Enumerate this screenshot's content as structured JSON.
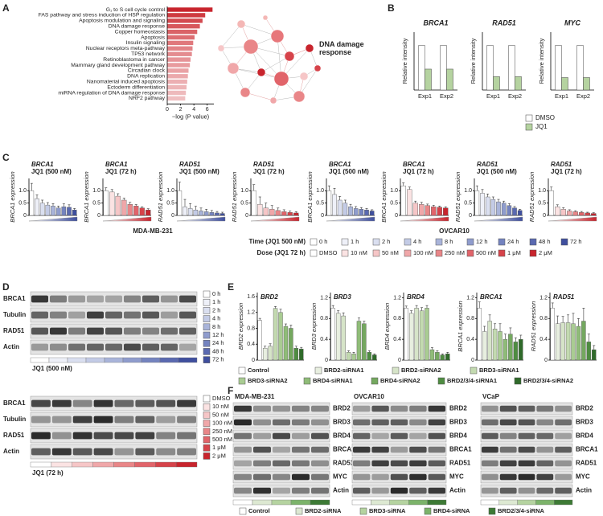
{
  "panel_labels": [
    "A",
    "B",
    "C",
    "D",
    "E",
    "F"
  ],
  "network": {
    "label": "DNA damage response"
  },
  "chart_data": [
    {
      "type": "bar",
      "orientation": "horizontal",
      "categories": [
        "G₁ to S cell cycle control",
        "FAS pathway and stress induction of HSP regulation",
        "Apoptosis modulation and signaling",
        "DNA damage response",
        "Copper homeostasis",
        "Apoptosis",
        "Insulin signaling",
        "Nuclear receptors meta-pathway",
        "TP53 network",
        "Retinoblastoma in cancer",
        "Mammary gland development pathway",
        "Circadian clock",
        "DNA replication",
        "Nanomaterial induced apoptosis",
        "Ectoderm differentiation",
        "miRNA regulation of DNA damage response",
        "NRF2 pathway"
      ],
      "values": [
        6.8,
        5.7,
        5.3,
        4.9,
        4.5,
        4.1,
        3.9,
        3.8,
        3.7,
        3.5,
        3.4,
        3.2,
        3.1,
        3.0,
        2.9,
        2.8,
        2.7
      ],
      "colors": [
        "#c8242d",
        "#cf3a41",
        "#d34a50",
        "#d7575c",
        "#da6367",
        "#dd6e72",
        "#e0787c",
        "#e28286",
        "#e48b8f",
        "#e69397",
        "#e89b9e",
        "#e9a2a5",
        "#eba9ac",
        "#ecafb2",
        "#edb5b7",
        "#eebabc",
        "#efbfc1"
      ],
      "tick_label_colors": [
        "#222222",
        "#222222",
        "#222222",
        "#d62728",
        "#222222",
        "#222222",
        "#222222",
        "#222222",
        "#222222",
        "#222222",
        "#222222",
        "#222222",
        "#222222",
        "#222222",
        "#222222",
        "#222222",
        "#222222"
      ],
      "xlim": [
        0,
        7
      ],
      "xticks": [
        0,
        2,
        4,
        6
      ],
      "xlabel": "−log (P value)"
    },
    {
      "type": "bar",
      "ylabel": "Relative intensity",
      "categories": [
        "Exp1",
        "Exp2"
      ],
      "ylim": [
        0,
        1.3
      ],
      "series": [
        {
          "name": "DMSO",
          "color": "#ffffff"
        },
        {
          "name": "JQ1",
          "color": "#b5d3a0"
        }
      ],
      "panels": [
        {
          "title": "BRCA1",
          "values": [
            [
              1,
              1
            ],
            [
              0.47,
              0.47
            ]
          ]
        },
        {
          "title": "RAD51",
          "values": [
            [
              1,
              1
            ],
            [
              0.3,
              0.3
            ]
          ]
        },
        {
          "title": "MYC",
          "values": [
            [
              1,
              1
            ],
            [
              0.28,
              0.28
            ]
          ]
        }
      ]
    },
    {
      "type": "bar",
      "ylim": [
        0,
        1.5
      ],
      "yticks": [
        0,
        0.5,
        {
          "value": 1,
          "label": "1.0"
        }
      ],
      "groups": [
        {
          "label": "MDA-MB-231",
          "panels": [
            {
              "title": "BRCA1",
              "subtitle": "JQ1 (500 nM)",
              "ylabel": "BRCA1 expression",
              "values": [
                1,
                0.68,
                0.5,
                0.42,
                0.38,
                0.3,
                0.35,
                0.33,
                0.22
              ],
              "errors": [
                0.3,
                0.15,
                0.12,
                0.1,
                0.1,
                0.08,
                0.12,
                0.1,
                0.06
              ],
              "colors": [
                "#ffffff",
                "#eef0f8",
                "#dadff0",
                "#c3cbe6",
                "#a9b4da",
                "#8f9ccd",
                "#7483bf",
                "#5a69b0",
                "#3f4f9e"
              ]
            },
            {
              "title": "BRCA1",
              "subtitle": "JQ1 (72 h)",
              "ylabel": "BRCA1 expression",
              "values": [
                1,
                0.95,
                0.78,
                0.62,
                0.45,
                0.38,
                0.3,
                0.22
              ],
              "errors": [
                0.12,
                0.1,
                0.1,
                0.08,
                0.08,
                0.06,
                0.05,
                0.05
              ],
              "colors": [
                "#ffffff",
                "#fbe3e3",
                "#f6c6c7",
                "#f0a7a9",
                "#e98688",
                "#e1646a",
                "#d6434a",
                "#c8242d"
              ]
            },
            {
              "title": "RAD51",
              "subtitle": "JQ1 (500 nM)",
              "ylabel": "RAD51 expression",
              "values": [
                1,
                0.35,
                0.28,
                0.22,
                0.18,
                0.15,
                0.12,
                0.1,
                0.08
              ],
              "errors": [
                0.35,
                0.3,
                0.2,
                0.15,
                0.12,
                0.1,
                0.08,
                0.06,
                0.05
              ],
              "colors": [
                "#ffffff",
                "#eef0f8",
                "#dadff0",
                "#c3cbe6",
                "#a9b4da",
                "#8f9ccd",
                "#7483bf",
                "#5a69b0",
                "#3f4f9e"
              ]
            },
            {
              "title": "RAD51",
              "subtitle": "JQ1 (72 h)",
              "ylabel": "RAD51 expression",
              "values": [
                1,
                0.45,
                0.3,
                0.25,
                0.2,
                0.15,
                0.12,
                0.1
              ],
              "errors": [
                0.25,
                0.3,
                0.2,
                0.15,
                0.1,
                0.08,
                0.06,
                0.05
              ],
              "colors": [
                "#ffffff",
                "#fbe3e3",
                "#f6c6c7",
                "#f0a7a9",
                "#e98688",
                "#e1646a",
                "#d6434a",
                "#c8242d"
              ]
            }
          ]
        },
        {
          "label": "OVCAR10",
          "panels": [
            {
              "title": "BRCA1",
              "subtitle": "JQ1 (500 nM)",
              "ylabel": "BRCA1 expression",
              "values": [
                1,
                0.85,
                0.62,
                0.5,
                0.35,
                0.28,
                0.25,
                0.22,
                0.18
              ],
              "errors": [
                0.2,
                0.25,
                0.15,
                0.12,
                0.1,
                0.08,
                0.07,
                0.06,
                0.05
              ],
              "colors": [
                "#ffffff",
                "#eef0f8",
                "#dadff0",
                "#c3cbe6",
                "#a9b4da",
                "#8f9ccd",
                "#7483bf",
                "#5a69b0",
                "#3f4f9e"
              ]
            },
            {
              "title": "BRCA1",
              "subtitle": "JQ1 (72 h)",
              "ylabel": "BRCA1 expression",
              "values": [
                1.2,
                1.05,
                0.5,
                0.45,
                0.4,
                0.35,
                0.33,
                0.3
              ],
              "errors": [
                0.12,
                0.1,
                0.08,
                0.08,
                0.06,
                0.06,
                0.05,
                0.05
              ],
              "colors": [
                "#ffffff",
                "#fbe3e3",
                "#f6c6c7",
                "#f0a7a9",
                "#e98688",
                "#e1646a",
                "#d6434a",
                "#c8242d"
              ]
            },
            {
              "title": "RAD51",
              "subtitle": "JQ1 (500 nM)",
              "ylabel": "RAD51 expression",
              "values": [
                1,
                0.9,
                0.75,
                0.65,
                0.55,
                0.5,
                0.4,
                0.3,
                0.2
              ],
              "errors": [
                0.2,
                0.15,
                0.12,
                0.1,
                0.1,
                0.08,
                0.08,
                0.06,
                0.05
              ],
              "colors": [
                "#ffffff",
                "#eef0f8",
                "#dadff0",
                "#c3cbe6",
                "#a9b4da",
                "#8f9ccd",
                "#7483bf",
                "#5a69b0",
                "#3f4f9e"
              ]
            },
            {
              "title": "RAD51",
              "subtitle": "JQ1 (72 h)",
              "ylabel": "RAD51 expression",
              "values": [
                1,
                0.35,
                0.25,
                0.18,
                0.15,
                0.12,
                0.1,
                0.08
              ],
              "errors": [
                0.15,
                0.08,
                0.06,
                0.05,
                0.04,
                0.04,
                0.03,
                0.03
              ],
              "colors": [
                "#ffffff",
                "#fbe3e3",
                "#f6c6c7",
                "#f0a7a9",
                "#e98688",
                "#e1646a",
                "#d6434a",
                "#c8242d"
              ]
            }
          ]
        }
      ],
      "legends": [
        {
          "title": "Time (JQ1 500 nM)",
          "labels": [
            "0 h",
            "1 h",
            "2 h",
            "4 h",
            "8 h",
            "12 h",
            "24 h",
            "48 h",
            "72 h"
          ],
          "colors": [
            "#ffffff",
            "#eef0f8",
            "#dadff0",
            "#c3cbe6",
            "#a9b4da",
            "#8f9ccd",
            "#7483bf",
            "#5a69b0",
            "#3f4f9e"
          ]
        },
        {
          "title": "Dose (JQ1 72 h)",
          "labels": [
            "DMSO",
            "10 nM",
            "50 nM",
            "100 nM",
            "250 nM",
            "500 nM",
            "1 μM",
            "2 μM"
          ],
          "colors": [
            "#ffffff",
            "#fbe3e3",
            "#f6c6c7",
            "#f0a7a9",
            "#e98688",
            "#e1646a",
            "#d6434a",
            "#c8242d"
          ]
        }
      ]
    },
    {
      "type": "bar",
      "colors": [
        "#ffffff",
        "#e8efe0",
        "#d6e4c8",
        "#c3dab0",
        "#a9cc92",
        "#8fbc78",
        "#74a85f",
        "#4e8c41",
        "#2f6a2a"
      ],
      "legend": [
        "Control",
        "BRD2-siRNA1",
        "BRD2-siRNA2",
        "BRD3-siRNA1",
        "BRD3-siRNA2",
        "BRD4-siRNA1",
        "BRD4-siRNA2",
        "BRD2/3/4-siRNA1",
        "BRD2/3/4-siRNA2"
      ],
      "panels": [
        {
          "title": "BRD2",
          "ylabel": "BRD2 expression",
          "ylim": [
            0,
            1.7
          ],
          "yticks": [
            0,
            0.4,
            0.8,
            1.2,
            1.6
          ],
          "values": [
            1,
            0.3,
            0.35,
            1.3,
            1.2,
            0.85,
            0.8,
            0.3,
            0.28
          ],
          "errors": [
            0.05,
            0.05,
            0.06,
            0.05,
            0.08,
            0.06,
            0.08,
            0.05,
            0.04
          ]
        },
        {
          "title": "BRD3",
          "ylabel": "BRD3 expression",
          "ylim": [
            0,
            1.3
          ],
          "yticks": [
            0,
            0.4,
            0.8,
            1.2
          ],
          "values": [
            1,
            0.9,
            0.85,
            0.15,
            0.12,
            0.75,
            0.7,
            0.15,
            0.1
          ],
          "errors": [
            0.05,
            0.05,
            0.06,
            0.03,
            0.03,
            0.06,
            0.05,
            0.03,
            0.02
          ]
        },
        {
          "title": "BRD4",
          "ylabel": "BRD4 expression",
          "ylim": [
            0,
            1.3
          ],
          "yticks": [
            0,
            0.4,
            0.8,
            1.2
          ],
          "values": [
            1,
            0.9,
            1,
            0.95,
            1,
            0.2,
            0.15,
            0.1,
            0.12
          ],
          "errors": [
            0.04,
            0.05,
            0.05,
            0.06,
            0.05,
            0.04,
            0.03,
            0.02,
            0.03
          ]
        },
        {
          "title": "BRCA1",
          "ylabel": "BRCA1 expression",
          "ylim": [
            0,
            1.3
          ],
          "yticks": [
            0,
            0.4,
            0.8,
            1.2
          ],
          "values": [
            1,
            0.55,
            0.75,
            0.6,
            0.55,
            0.4,
            0.5,
            0.35,
            0.4
          ],
          "errors": [
            0.12,
            0.1,
            0.12,
            0.1,
            0.15,
            0.1,
            0.12,
            0.08,
            0.08
          ]
        },
        {
          "title": "RAD51",
          "ylabel": "RAD51 expression",
          "ylim": [
            0,
            1.3
          ],
          "yticks": [
            0,
            0.4,
            0.8,
            1.2
          ],
          "values": [
            1,
            0.7,
            0.72,
            0.72,
            0.7,
            0.65,
            0.75,
            0.35,
            0.2
          ],
          "errors": [
            0.1,
            0.15,
            0.12,
            0.15,
            0.2,
            0.15,
            0.25,
            0.15,
            0.08
          ]
        }
      ]
    }
  ],
  "western_blots_d": {
    "rows": [
      "BRCA1",
      "Tubulin",
      "RAD51",
      "Actin"
    ],
    "captions": [
      "JQ1 (500 nM)",
      "JQ1 (72 h)"
    ]
  },
  "western_blots_f": {
    "cell_lines": [
      "MDA-MB-231",
      "OVCAR10",
      "VCaP"
    ],
    "rows": [
      "BRD2",
      "BRD3",
      "BRD4",
      "BRCA1",
      "RAD51",
      "MYC",
      "Actin"
    ],
    "legend": [
      "Control",
      "BRD2-siRNA",
      "BRD3-siRNA",
      "BRD4-siRNA",
      "BRD2/3/4-siRNA"
    ],
    "colors": [
      "#ffffff",
      "#dde8d2",
      "#b5d3a0",
      "#7cb36a",
      "#3d7a35"
    ]
  }
}
